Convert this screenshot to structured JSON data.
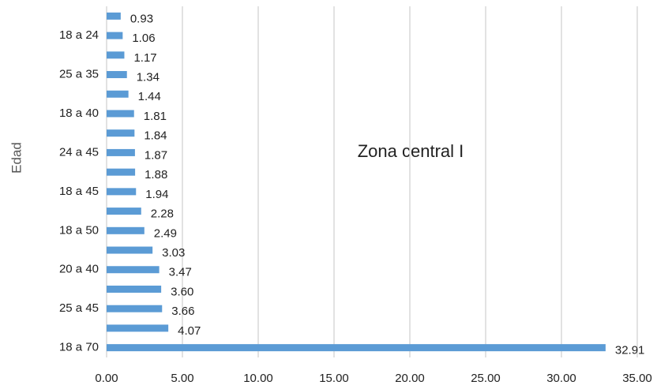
{
  "chart_data": {
    "type": "barh",
    "annotation": "Zona central I",
    "y_label": "Edad",
    "categories": [
      null,
      "18 a 24",
      null,
      "25 a 35",
      null,
      "18 a 40",
      null,
      "24 a 45",
      null,
      "18 a 45",
      null,
      "18 a 50",
      null,
      "20 a 40",
      null,
      "25 a 45",
      null,
      "18 a 70"
    ],
    "values": [
      0.93,
      1.06,
      1.17,
      1.34,
      1.44,
      1.81,
      1.84,
      1.87,
      1.88,
      1.94,
      2.28,
      2.49,
      3.03,
      3.47,
      3.6,
      3.66,
      4.07,
      32.91
    ],
    "value_labels": [
      "0.93",
      "1.06",
      "1.17",
      "1.34",
      "1.44",
      "1.81",
      "1.84",
      "1.87",
      "1.88",
      "1.94",
      "2.28",
      "2.49",
      "3.03",
      "3.47",
      "3.60",
      "3.66",
      "4.07",
      "32.91"
    ],
    "color": "#5b9bd5",
    "xlim": [
      0,
      35
    ],
    "xticks": [
      {
        "value": 0,
        "label": "0.00"
      },
      {
        "value": 5,
        "label": "5.00"
      },
      {
        "value": 10,
        "label": "10.00"
      },
      {
        "value": 15,
        "label": "15.00"
      },
      {
        "value": 20,
        "label": "20.00"
      },
      {
        "value": 25,
        "label": "25.00"
      },
      {
        "value": 30,
        "label": "30.00"
      },
      {
        "value": 35,
        "label": "35.00"
      }
    ],
    "grid": true
  }
}
